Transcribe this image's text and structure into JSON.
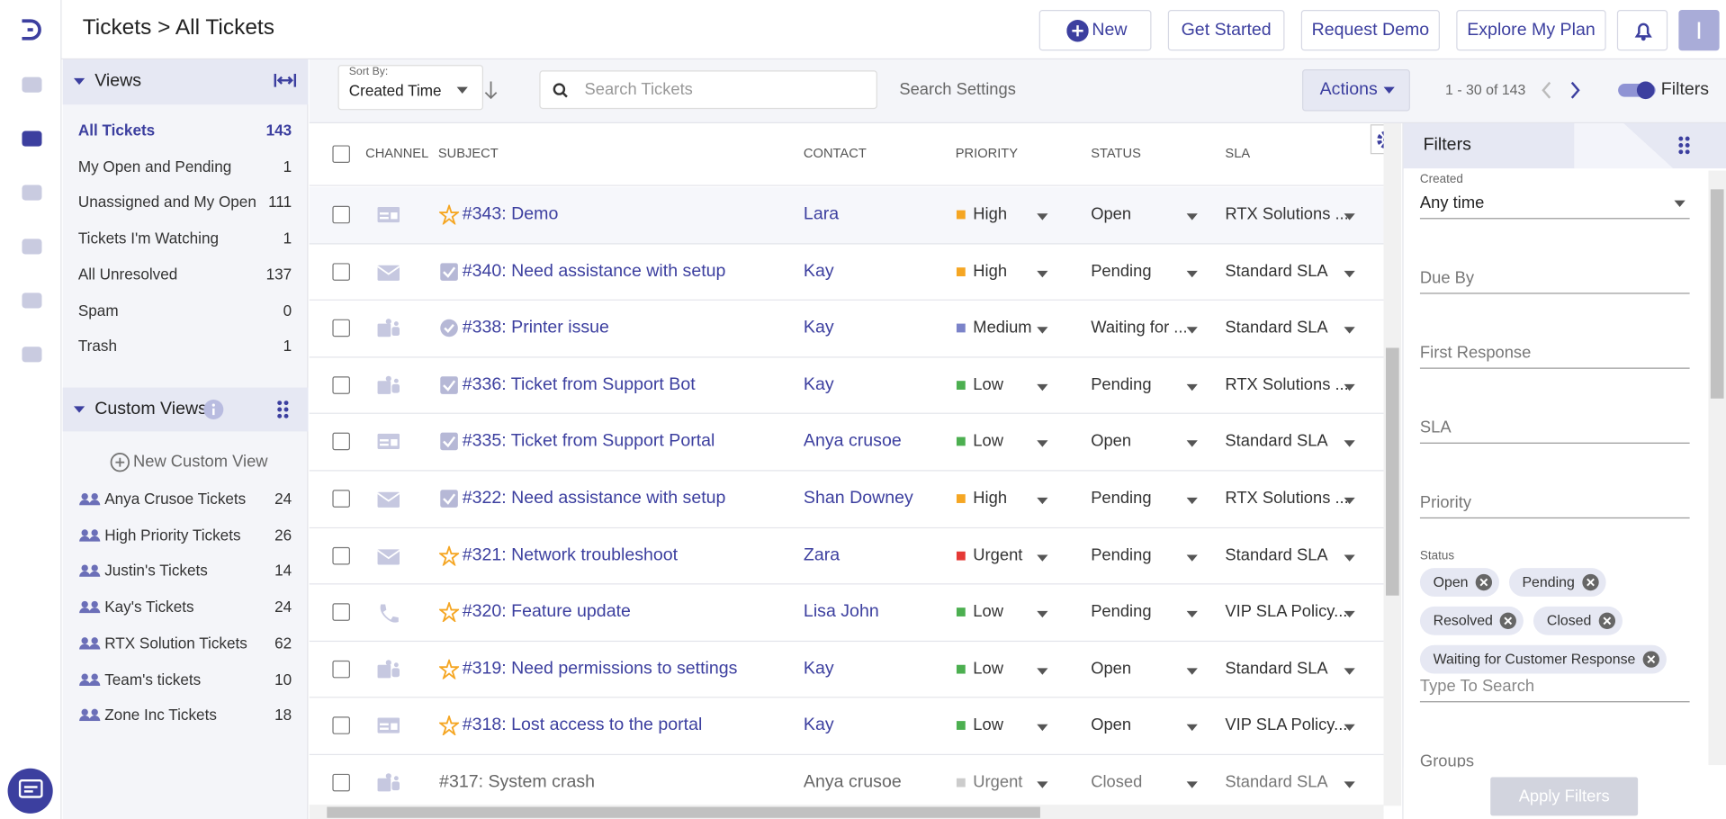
{
  "header": {
    "title": "Tickets > All Tickets",
    "buttons": [
      "New",
      "Get Started",
      "Request Demo",
      "Explore My Plan"
    ],
    "avatar": "I"
  },
  "sidebar": {
    "views_title": "Views",
    "views": [
      {
        "label": "All Tickets",
        "count": 143,
        "active": true
      },
      {
        "label": "My Open and Pending",
        "count": 1
      },
      {
        "label": "Unassigned and My Open",
        "count": 111
      },
      {
        "label": "Tickets I'm Watching",
        "count": 1
      },
      {
        "label": "All Unresolved",
        "count": 137
      },
      {
        "label": "Spam",
        "count": 0
      },
      {
        "label": "Trash",
        "count": 1
      }
    ],
    "custom_title": "Custom Views",
    "new_custom_view": "New Custom View",
    "custom_views": [
      {
        "label": "Anya Crusoe Tickets",
        "count": 24
      },
      {
        "label": "High Priority Tickets",
        "count": 26
      },
      {
        "label": "Justin's Tickets",
        "count": 14
      },
      {
        "label": "Kay's Tickets",
        "count": 24
      },
      {
        "label": "RTX Solution Tickets",
        "count": 62
      },
      {
        "label": "Team's tickets",
        "count": 10
      },
      {
        "label": "Zone Inc Tickets",
        "count": 18
      }
    ]
  },
  "toolbar": {
    "sort_by_label": "Sort By:",
    "sort_by": "Created Time",
    "search_placeholder": "Search Tickets",
    "search_settings": "Search Settings",
    "actions": "Actions",
    "pagination": "1 - 30 of 143",
    "filters_toggle": "Filters"
  },
  "table": {
    "columns": [
      "CHANNEL",
      "SUBJECT",
      "CONTACT",
      "PRIORITY",
      "STATUS",
      "SLA"
    ],
    "rows": [
      {
        "mark": "star",
        "channel": "portal",
        "subject": "#343: Demo",
        "contact": "Lara",
        "priority": "High",
        "priority_color": "#f5a623",
        "status": "Open",
        "sla": "RTX Solutions ...",
        "highlight": true
      },
      {
        "mark": "check",
        "channel": "email",
        "subject": "#340: Need assistance with setup",
        "contact": "Kay",
        "priority": "High",
        "priority_color": "#f5a623",
        "status": "Pending",
        "sla": "Standard SLA"
      },
      {
        "mark": "circle",
        "channel": "teams",
        "subject": "#338: Printer issue",
        "contact": "Kay",
        "priority": "Medium",
        "priority_color": "#7b83c9",
        "status": "Waiting for ...",
        "sla": "Standard SLA"
      },
      {
        "mark": "check",
        "channel": "teams",
        "subject": "#336: Ticket from Support Bot",
        "contact": "Kay",
        "priority": "Low",
        "priority_color": "#4caf50",
        "status": "Pending",
        "sla": "RTX Solutions ..."
      },
      {
        "mark": "check",
        "channel": "portal",
        "subject": "#335: Ticket from Support Portal",
        "contact": "Anya crusoe",
        "priority": "Low",
        "priority_color": "#4caf50",
        "status": "Open",
        "sla": "Standard SLA"
      },
      {
        "mark": "check",
        "channel": "email",
        "subject": "#322: Need assistance with setup",
        "contact": "Shan Downey",
        "priority": "High",
        "priority_color": "#f5a623",
        "status": "Pending",
        "sla": "RTX Solutions ..."
      },
      {
        "mark": "star",
        "channel": "email",
        "subject": "#321: Network troubleshoot",
        "contact": "Zara",
        "priority": "Urgent",
        "priority_color": "#e53935",
        "status": "Pending",
        "sla": "Standard SLA"
      },
      {
        "mark": "star",
        "channel": "phone",
        "subject": "#320: Feature update",
        "contact": "Lisa John",
        "priority": "Low",
        "priority_color": "#4caf50",
        "status": "Pending",
        "sla": "VIP SLA Policy..."
      },
      {
        "mark": "star",
        "channel": "teams",
        "subject": "#319: Need permissions to settings",
        "contact": "Kay",
        "priority": "Low",
        "priority_color": "#4caf50",
        "status": "Open",
        "sla": "Standard SLA"
      },
      {
        "mark": "star",
        "channel": "portal",
        "subject": "#318: Lost access to the portal",
        "contact": "Kay",
        "priority": "Low",
        "priority_color": "#4caf50",
        "status": "Open",
        "sla": "VIP SLA Policy..."
      },
      {
        "mark": "none",
        "channel": "teams",
        "subject": "#317: System crash",
        "contact": "Anya crusoe",
        "priority": "Urgent",
        "priority_color": "#cccccc",
        "status": "Closed",
        "sla": "Standard SLA",
        "muted": true
      }
    ]
  },
  "filters": {
    "title": "Filters",
    "created_label": "Created",
    "created_value": "Any time",
    "fields": [
      "Due By",
      "First Response",
      "SLA",
      "Priority"
    ],
    "status_label": "Status",
    "status_chips": [
      "Open",
      "Pending",
      "Resolved",
      "Closed",
      "Waiting for Customer Response"
    ],
    "type_to_search": "Type To Search",
    "groups": "Groups",
    "apply": "Apply Filters"
  }
}
